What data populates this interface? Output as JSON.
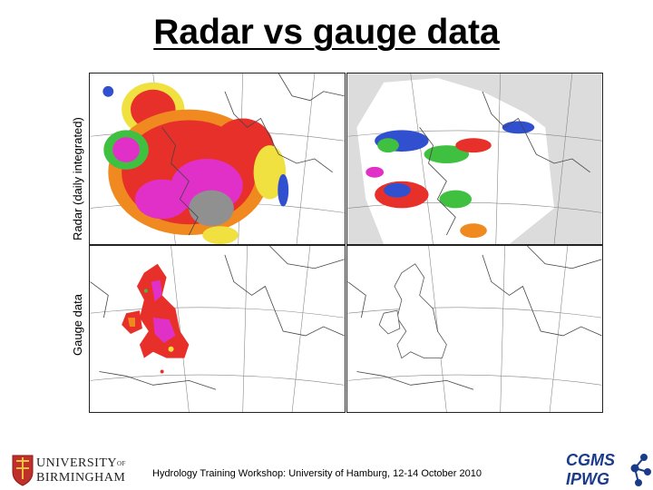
{
  "title": "Radar vs gauge data",
  "row_labels": {
    "top": "Radar (daily integrated)",
    "bottom": "Gauge data"
  },
  "footer": "Hydrology Training Workshop: University of Hamburg, 12-14 October 2010",
  "logos": {
    "university_line1": "UNIVERSITY",
    "university_of": "OF",
    "university_line2": "BIRMINGHAM",
    "cgms": "CGMS",
    "ipwg": "IPWG"
  },
  "colors": {
    "precip_red": "#e8302a",
    "precip_magenta": "#e030c8",
    "precip_orange": "#f08a20",
    "precip_yellow": "#f0e040",
    "precip_green": "#40c040",
    "precip_blue": "#3050d0",
    "precip_grey": "#909090",
    "coast": "#444444",
    "logo_blue": "#1a3a8a"
  }
}
